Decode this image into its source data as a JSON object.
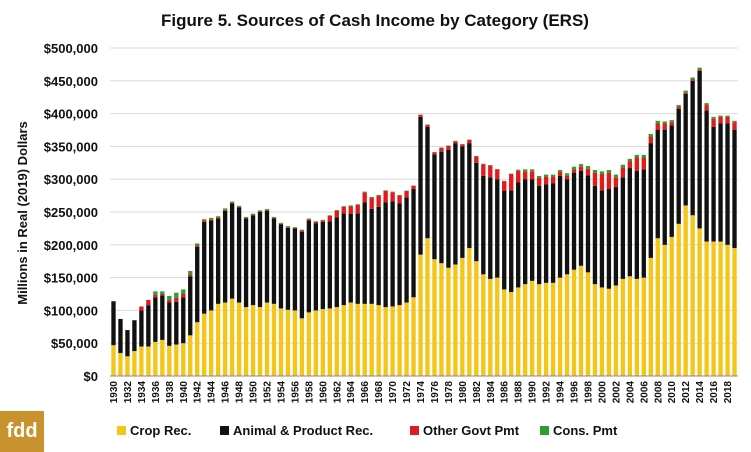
{
  "title": "Figure 5. Sources of Cash Income by Category (ERS)",
  "logo_text": "fdd",
  "chart_data": {
    "type": "bar",
    "stacked": true,
    "title": "Figure 5. Sources of Cash Income by Category (ERS)",
    "ylabel": "Millions in Real (2019) Dollars",
    "xlabel": "",
    "ylim": [
      0,
      500000
    ],
    "yticks": [
      "$0",
      "$50,000",
      "$100,000",
      "$150,000",
      "$200,000",
      "$250,000",
      "$300,000",
      "$350,000",
      "$400,000",
      "$450,000",
      "$500,000"
    ],
    "grid": "horizontal",
    "legend_position": "bottom",
    "colors": {
      "crop": "#f5c518",
      "animal": "#111111",
      "govt": "#e31a1c",
      "cons": "#2ca02c"
    },
    "categories": [
      "1930",
      "1931",
      "1932",
      "1933",
      "1934",
      "1935",
      "1936",
      "1937",
      "1938",
      "1939",
      "1940",
      "1941",
      "1942",
      "1943",
      "1944",
      "1945",
      "1946",
      "1947",
      "1948",
      "1949",
      "1950",
      "1951",
      "1952",
      "1953",
      "1954",
      "1955",
      "1956",
      "1957",
      "1958",
      "1959",
      "1960",
      "1961",
      "1962",
      "1963",
      "1964",
      "1965",
      "1966",
      "1967",
      "1968",
      "1969",
      "1970",
      "1971",
      "1972",
      "1973",
      "1974",
      "1975",
      "1976",
      "1977",
      "1978",
      "1979",
      "1980",
      "1981",
      "1982",
      "1983",
      "1984",
      "1985",
      "1986",
      "1987",
      "1988",
      "1989",
      "1990",
      "1991",
      "1992",
      "1993",
      "1994",
      "1995",
      "1996",
      "1997",
      "1998",
      "1999",
      "2000",
      "2001",
      "2002",
      "2003",
      "2004",
      "2005",
      "2006",
      "2007",
      "2008",
      "2009",
      "2010",
      "2011",
      "2012",
      "2013",
      "2014",
      "2015",
      "2016",
      "2017",
      "2018",
      "2019"
    ],
    "x_tick_labels": [
      "1930",
      "1932",
      "1934",
      "1936",
      "1938",
      "1940",
      "1942",
      "1944",
      "1946",
      "1948",
      "1950",
      "1952",
      "1954",
      "1956",
      "1958",
      "1960",
      "1962",
      "1964",
      "1966",
      "1968",
      "1970",
      "1972",
      "1974",
      "1976",
      "1978",
      "1980",
      "1982",
      "1984",
      "1986",
      "1988",
      "1990",
      "1992",
      "1994",
      "1996",
      "1998",
      "2000",
      "2002",
      "2004",
      "2006",
      "2008",
      "2010",
      "2012",
      "2014",
      "2016",
      "2018"
    ],
    "series": [
      {
        "name": "Crop Rec.",
        "key": "crop",
        "values": [
          47000,
          35000,
          30000,
          38000,
          45000,
          45000,
          52000,
          55000,
          46000,
          48000,
          50000,
          62000,
          82000,
          95000,
          100000,
          110000,
          112000,
          118000,
          112000,
          105000,
          108000,
          105000,
          112000,
          110000,
          103000,
          101000,
          100000,
          88000,
          97000,
          100000,
          102000,
          103000,
          105000,
          108000,
          112000,
          110000,
          110000,
          110000,
          108000,
          105000,
          106000,
          108000,
          112000,
          120000,
          185000,
          210000,
          178000,
          172000,
          165000,
          170000,
          180000,
          195000,
          175000,
          155000,
          148000,
          150000,
          132000,
          128000,
          135000,
          140000,
          145000,
          140000,
          142000,
          142000,
          150000,
          155000,
          162000,
          168000,
          158000,
          140000,
          135000,
          133000,
          138000,
          148000,
          152000,
          148000,
          150000,
          180000,
          210000,
          200000,
          212000,
          232000,
          260000,
          245000,
          225000,
          205000,
          205000,
          205000,
          200000,
          195000
        ]
      },
      {
        "name": "Animal & Product Rec.",
        "key": "animal",
        "values": [
          67000,
          52000,
          40000,
          47000,
          55000,
          63000,
          68000,
          68000,
          66000,
          65000,
          70000,
          90000,
          115000,
          140000,
          137000,
          130000,
          140000,
          145000,
          145000,
          135000,
          137000,
          145000,
          140000,
          130000,
          128000,
          125000,
          125000,
          132000,
          140000,
          133000,
          133000,
          133000,
          137000,
          140000,
          135000,
          138000,
          155000,
          145000,
          150000,
          160000,
          160000,
          155000,
          160000,
          165000,
          210000,
          170000,
          160000,
          170000,
          180000,
          185000,
          170000,
          160000,
          150000,
          150000,
          155000,
          150000,
          150000,
          155000,
          160000,
          160000,
          155000,
          150000,
          150000,
          152000,
          155000,
          145000,
          148000,
          145000,
          148000,
          150000,
          148000,
          152000,
          150000,
          155000,
          165000,
          165000,
          165000,
          175000,
          165000,
          175000,
          170000,
          175000,
          170000,
          205000,
          240000,
          200000,
          175000,
          180000,
          185000,
          180000
        ]
      },
      {
        "name": "Other Govt Pmt",
        "key": "govt",
        "values": [
          0,
          0,
          0,
          0,
          6000,
          8000,
          4000,
          2000,
          4000,
          6000,
          5000,
          3000,
          2000,
          2000,
          2000,
          1500,
          1500,
          1000,
          1000,
          1000,
          1000,
          1000,
          1000,
          1000,
          1000,
          1000,
          1000,
          2000,
          2000,
          2000,
          2000,
          8000,
          10000,
          10000,
          12000,
          13000,
          15000,
          17000,
          17000,
          17000,
          14000,
          12000,
          10000,
          5000,
          3000,
          3000,
          3000,
          6000,
          6000,
          3000,
          3000,
          5000,
          10000,
          18000,
          18000,
          15000,
          15000,
          25000,
          18000,
          12000,
          12000,
          12000,
          12000,
          10000,
          6000,
          5000,
          5000,
          6000,
          10000,
          20000,
          25000,
          25000,
          15000,
          15000,
          10000,
          20000,
          18000,
          10000,
          10000,
          10000,
          5000,
          3000,
          2000,
          2000,
          2000,
          8000,
          12000,
          10000,
          10000,
          12000
        ]
      },
      {
        "name": "Cons. Pmt",
        "key": "cons",
        "values": [
          0,
          0,
          0,
          0,
          0,
          0,
          5000,
          4000,
          6000,
          8000,
          7000,
          5000,
          3000,
          2000,
          2000,
          2000,
          2000,
          2000,
          1500,
          1500,
          1500,
          1500,
          1500,
          1500,
          1500,
          1500,
          1000,
          1000,
          1000,
          1000,
          1000,
          1000,
          1000,
          1000,
          1000,
          1000,
          1000,
          1000,
          1000,
          1000,
          1000,
          1000,
          500,
          500,
          500,
          500,
          500,
          500,
          500,
          500,
          500,
          500,
          500,
          500,
          500,
          500,
          500,
          500,
          1500,
          3000,
          3000,
          3000,
          3000,
          3000,
          3000,
          4000,
          4000,
          4000,
          4000,
          4000,
          4000,
          4000,
          4000,
          4000,
          4000,
          4000,
          4000,
          4000,
          4000,
          3000,
          3000,
          3000,
          3000,
          3000,
          3000,
          3000,
          3000,
          2000,
          2000,
          2000
        ]
      }
    ]
  }
}
